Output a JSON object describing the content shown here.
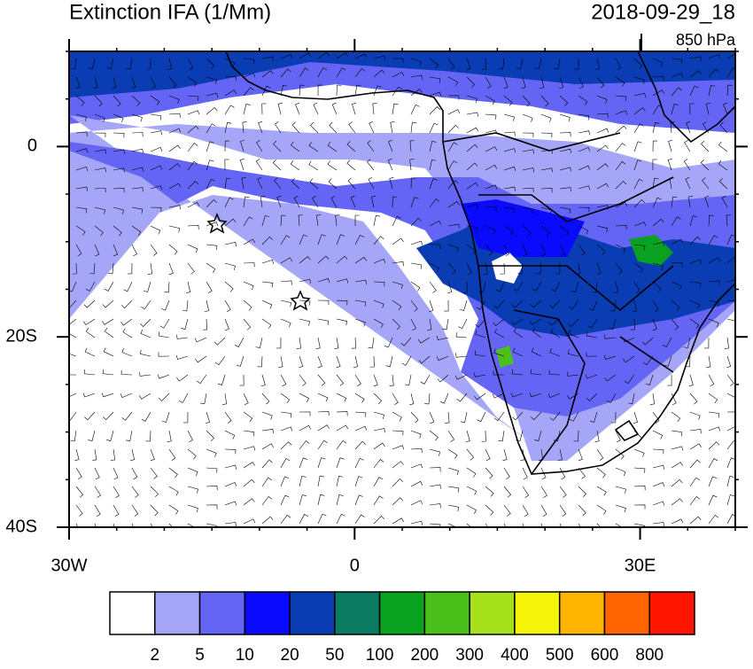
{
  "chart_data": {
    "type": "map",
    "title": "Extinction IFA (1/Mm)",
    "subtitle": "2018-09-29_18",
    "level": "850 hPa",
    "xlim": [
      -30,
      40
    ],
    "ylim": [
      -40,
      10
    ],
    "xticks": [
      {
        "value": -30,
        "label": "30W"
      },
      0,
      {
        "value": 30,
        "label": "30E"
      }
    ],
    "yticks": [
      0,
      {
        "value": -20,
        "label": "20S"
      },
      {
        "value": -40,
        "label": "40S"
      }
    ],
    "colorbar": {
      "levels": [
        2,
        5,
        10,
        20,
        50,
        100,
        200,
        300,
        400,
        500,
        600,
        800
      ],
      "colors": [
        "#ffffff",
        "#a6a6f8",
        "#6464f5",
        "#0a0aff",
        "#0a3cb4",
        "#0a7a60",
        "#0aa020",
        "#4cc01a",
        "#a6e01a",
        "#f5f50a",
        "#ffb400",
        "#ff6400",
        "#ff1400"
      ]
    }
  }
}
